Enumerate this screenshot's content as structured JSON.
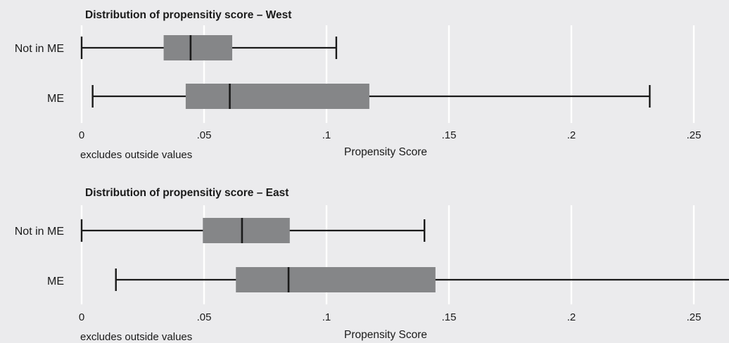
{
  "chart_data": [
    {
      "type": "boxplot",
      "title": "Distribution of propensitiy score – West",
      "xlabel": "Propensity Score",
      "note": "excludes outside values",
      "xlim": [
        0,
        0.265
      ],
      "ticks": [
        {
          "value": 0,
          "label": "0"
        },
        {
          "value": 0.05,
          "label": ".05"
        },
        {
          "value": 0.1,
          "label": ".1"
        },
        {
          "value": 0.15,
          "label": ".15"
        },
        {
          "value": 0.2,
          "label": ".2"
        },
        {
          "value": 0.25,
          "label": ".25"
        }
      ],
      "grid": true,
      "categories": [
        "Not in ME",
        "ME"
      ],
      "boxes": [
        {
          "category": "Not in ME",
          "whisker_low": 0.0,
          "q1": 0.0335,
          "median": 0.0445,
          "q3": 0.0615,
          "whisker_high": 0.104
        },
        {
          "category": "ME",
          "whisker_low": 0.0045,
          "q1": 0.0425,
          "median": 0.0605,
          "q3": 0.1175,
          "whisker_high": 0.232
        }
      ]
    },
    {
      "type": "boxplot",
      "title": "Distribution of propensitiy score – East",
      "xlabel": "Propensity Score",
      "note": "excludes outside values",
      "xlim": [
        0,
        0.265
      ],
      "ticks": [
        {
          "value": 0,
          "label": "0"
        },
        {
          "value": 0.05,
          "label": ".05"
        },
        {
          "value": 0.1,
          "label": ".1"
        },
        {
          "value": 0.15,
          "label": ".15"
        },
        {
          "value": 0.2,
          "label": ".2"
        },
        {
          "value": 0.25,
          "label": ".25"
        }
      ],
      "grid": true,
      "categories": [
        "Not in ME",
        "ME"
      ],
      "boxes": [
        {
          "category": "Not in ME",
          "whisker_low": 0.0,
          "q1": 0.0495,
          "median": 0.0655,
          "q3": 0.085,
          "whisker_high": 0.14
        },
        {
          "category": "ME",
          "whisker_low": 0.014,
          "q1": 0.063,
          "median": 0.0845,
          "q3": 0.1445,
          "whisker_high": 0.265
        }
      ]
    }
  ],
  "colors": {
    "background": "#ebebed",
    "box": "#858688",
    "line": "#1a1a1a",
    "grid": "#ffffff"
  }
}
